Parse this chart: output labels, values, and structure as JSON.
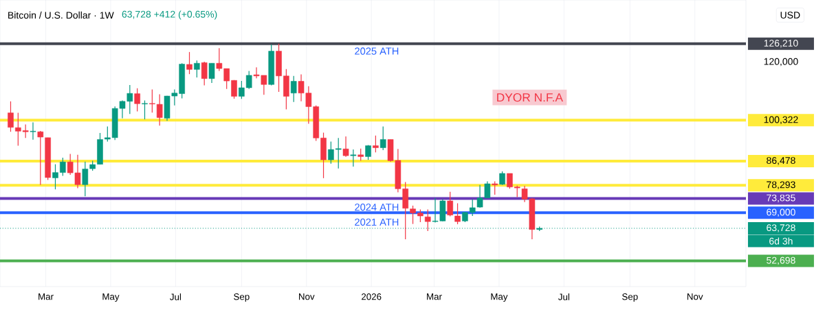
{
  "chart_data": {
    "type": "candlestick",
    "title": "Bitcoin / U.S. Dollar · 1W",
    "subtitle": "63,728 +412 (+0.65%)",
    "ylabel": "USD",
    "x": [
      "2025-01-27",
      "2025-02-03",
      "2025-02-10",
      "2025-02-17",
      "2025-02-24",
      "2025-03-03",
      "2025-03-10",
      "2025-03-17",
      "2025-03-24",
      "2025-03-31",
      "2025-04-07",
      "2025-04-14",
      "2025-04-21",
      "2025-04-28",
      "2025-05-05",
      "2025-05-12",
      "2025-05-19",
      "2025-05-26",
      "2025-06-02",
      "2025-06-09",
      "2025-06-16",
      "2025-06-23",
      "2025-06-30",
      "2025-07-07",
      "2025-07-14",
      "2025-07-21",
      "2025-07-28",
      "2025-08-04",
      "2025-08-11",
      "2025-08-18",
      "2025-08-25",
      "2025-09-01",
      "2025-09-08",
      "2025-09-15",
      "2025-09-22",
      "2025-09-29",
      "2025-10-06",
      "2025-10-13",
      "2025-10-20",
      "2025-10-27",
      "2025-11-03",
      "2025-11-10",
      "2025-11-17",
      "2025-11-24",
      "2025-12-01",
      "2025-12-08",
      "2025-12-15",
      "2025-12-22",
      "2025-12-29",
      "2026-01-05",
      "2026-01-12",
      "2026-01-19",
      "2026-01-26",
      "2026-02-02",
      "2026-02-09",
      "2026-02-16",
      "2026-02-23",
      "2026-03-02",
      "2026-03-09",
      "2026-03-16",
      "2026-03-23",
      "2026-03-30",
      "2026-04-06",
      "2026-04-13",
      "2026-04-20",
      "2026-04-27",
      "2026-05-04",
      "2026-05-11",
      "2026-05-18",
      "2026-05-25",
      "2026-06-01",
      "2026-06-08"
    ],
    "ohlc": [
      [
        102800,
        106700,
        96400,
        97900
      ],
      [
        97800,
        102800,
        91700,
        96600
      ],
      [
        96800,
        98900,
        94300,
        96400
      ],
      [
        96400,
        99600,
        93700,
        96600
      ],
      [
        96400,
        96700,
        78400,
        94600
      ],
      [
        94400,
        94400,
        80100,
        80900
      ],
      [
        80800,
        85400,
        76900,
        82600
      ],
      [
        82600,
        87600,
        81500,
        86200
      ],
      [
        86200,
        88900,
        81800,
        82500
      ],
      [
        82500,
        88600,
        77300,
        78500
      ],
      [
        78500,
        86300,
        74600,
        83800
      ],
      [
        83900,
        86600,
        83200,
        85300
      ],
      [
        85400,
        96000,
        85400,
        93800
      ],
      [
        93900,
        98200,
        93100,
        94400
      ],
      [
        94400,
        105000,
        93600,
        104300
      ],
      [
        104300,
        107000,
        101000,
        106700
      ],
      [
        106700,
        112200,
        102400,
        109400
      ],
      [
        109300,
        111100,
        103300,
        105900
      ],
      [
        105800,
        107000,
        100600,
        106000
      ],
      [
        106000,
        110700,
        102900,
        105800
      ],
      [
        105700,
        109100,
        98500,
        101200
      ],
      [
        101000,
        108600,
        100100,
        108500
      ],
      [
        108500,
        110700,
        105300,
        109500
      ],
      [
        109300,
        119600,
        107700,
        119300
      ],
      [
        119200,
        123400,
        115900,
        117500
      ],
      [
        117500,
        120500,
        114800,
        119600
      ],
      [
        119800,
        120100,
        112100,
        114400
      ],
      [
        114400,
        119600,
        112900,
        119600
      ],
      [
        119600,
        124700,
        117000,
        117800
      ],
      [
        117800,
        117800,
        110900,
        113600
      ],
      [
        113800,
        113900,
        107600,
        108400
      ],
      [
        108400,
        113600,
        107500,
        111300
      ],
      [
        111300,
        117000,
        110900,
        115500
      ],
      [
        115700,
        118200,
        114500,
        115300
      ],
      [
        115500,
        115500,
        108900,
        112400
      ],
      [
        112400,
        125900,
        112100,
        123700
      ],
      [
        123700,
        126210,
        109900,
        115300
      ],
      [
        115300,
        117600,
        104000,
        108400
      ],
      [
        109500,
        115300,
        106500,
        113500
      ],
      [
        113500,
        115800,
        106700,
        109500
      ],
      [
        109500,
        111800,
        99100,
        104900
      ],
      [
        104900,
        105300,
        93300,
        94300
      ],
      [
        94300,
        96100,
        80700,
        86900
      ],
      [
        86900,
        93100,
        85600,
        90400
      ],
      [
        90400,
        94300,
        84000,
        90700
      ],
      [
        90600,
        94800,
        87900,
        88300
      ],
      [
        88300,
        90400,
        84600,
        88600
      ],
      [
        88600,
        90700,
        86600,
        88000
      ],
      [
        88000,
        91900,
        86900,
        91700
      ],
      [
        91700,
        95100,
        89400,
        91000
      ],
      [
        91000,
        98200,
        90200,
        93800
      ],
      [
        93800,
        93800,
        86300,
        86600
      ],
      [
        86700,
        90600,
        75900,
        77100
      ],
      [
        77100,
        79400,
        60000,
        70500
      ],
      [
        70300,
        71400,
        65200,
        68900
      ],
      [
        68900,
        70100,
        65800,
        67900
      ],
      [
        67600,
        70100,
        62800,
        66000
      ],
      [
        66000,
        74000,
        65700,
        66200
      ],
      [
        66200,
        73600,
        66100,
        73000
      ],
      [
        73000,
        76100,
        67800,
        68200
      ],
      [
        67900,
        72200,
        65100,
        66000
      ],
      [
        66200,
        69300,
        65800,
        69100
      ],
      [
        69100,
        73600,
        67900,
        70700
      ],
      [
        70900,
        78400,
        70700,
        74000
      ],
      [
        74000,
        79600,
        74000,
        78800
      ],
      [
        78800,
        79600,
        75100,
        78400
      ],
      [
        78600,
        83000,
        78400,
        82300
      ],
      [
        82300,
        82300,
        77100,
        77700
      ],
      [
        77700,
        78200,
        74300,
        77400
      ],
      [
        77100,
        78100,
        72600,
        73600
      ],
      [
        73700,
        74000,
        60000,
        63316
      ],
      [
        63316,
        64300,
        62800,
        63728
      ]
    ],
    "xlim": [
      "2025-01-17",
      "2026-12-19"
    ],
    "ylim": [
      44000,
      141000
    ],
    "xticks": [
      {
        "value": "2025-03-01",
        "label": "Mar"
      },
      {
        "value": "2025-05-01",
        "label": "May"
      },
      {
        "value": "2025-07-01",
        "label": "Jul"
      },
      {
        "value": "2025-09-01",
        "label": "Sep"
      },
      {
        "value": "2025-11-01",
        "label": "Nov"
      },
      {
        "value": "2026-01-01",
        "label": "2026"
      },
      {
        "value": "2026-03-01",
        "label": "Mar"
      },
      {
        "value": "2026-05-01",
        "label": "May"
      },
      {
        "value": "2026-07-01",
        "label": "Jul"
      },
      {
        "value": "2026-09-01",
        "label": "Sep"
      },
      {
        "value": "2026-11-01",
        "label": "Nov"
      }
    ],
    "yticks": [
      {
        "value": 126210,
        "label": "126,210"
      },
      {
        "value": 120000,
        "label": "120,000"
      },
      {
        "value": 100322,
        "label": "100,322"
      },
      {
        "value": 86478,
        "label": "86,478"
      },
      {
        "value": 78293,
        "label": "78,293"
      },
      {
        "value": 73835,
        "label": "73,835"
      },
      {
        "value": 69000,
        "label": "69,000"
      },
      {
        "value": 63728,
        "label": "63,728"
      },
      {
        "value": 52698,
        "label": "52,698"
      }
    ],
    "grid": "x",
    "ref_lines": [
      {
        "axis": "y",
        "value": 126210,
        "color": "#434651"
      },
      {
        "axis": "y",
        "value": 100322,
        "color": "#ffeb3b"
      },
      {
        "axis": "y",
        "value": 86478,
        "color": "#ffeb3b"
      },
      {
        "axis": "y",
        "value": 78293,
        "color": "#ffeb3b"
      },
      {
        "axis": "y",
        "value": 73835,
        "color": "#673ab7"
      },
      {
        "axis": "y",
        "value": 69000,
        "color": "#2962ff"
      },
      {
        "axis": "y",
        "value": 63728,
        "color": "#089981",
        "line_style": "dotted"
      },
      {
        "axis": "y",
        "value": 52698,
        "color": "#4caf50"
      }
    ],
    "annotations": [
      {
        "text": "2025 ATH",
        "x": "2026-01-06",
        "y": 126210
      },
      "2024 ATH",
      "2021 ATH",
      "DYOR N.F.A",
      "6d 3h"
    ]
  }
}
